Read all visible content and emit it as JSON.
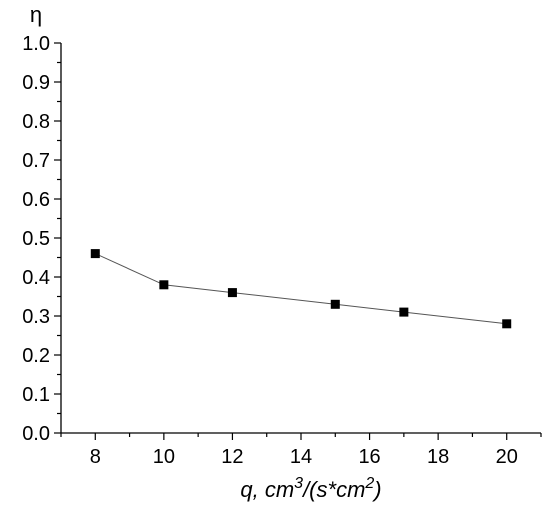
{
  "chart_data": {
    "type": "line",
    "ylabel": "η",
    "xlabel": {
      "base": "q, cm",
      "sup1": "3",
      "mid": "/(s*cm",
      "sup2": "2",
      "end": ")"
    },
    "xlim": [
      7,
      21
    ],
    "ylim": [
      0,
      1
    ],
    "x_ticks": [
      8,
      10,
      12,
      14,
      16,
      18,
      20
    ],
    "y_ticks": [
      "0.0",
      "0.1",
      "0.2",
      "0.3",
      "0.4",
      "0.5",
      "0.6",
      "0.7",
      "0.8",
      "0.9",
      "1.0"
    ],
    "series": [
      {
        "x": [
          8,
          10,
          12,
          15,
          17,
          20
        ],
        "y": [
          0.46,
          0.38,
          0.36,
          0.33,
          0.31,
          0.28
        ],
        "color": "#000000",
        "line_color": "#555555",
        "marker": "square"
      }
    ],
    "grid": false
  }
}
